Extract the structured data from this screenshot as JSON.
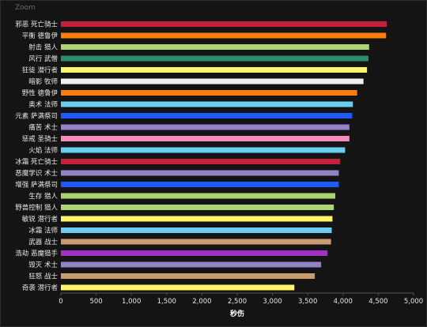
{
  "toolbar": {
    "zoom_label": "Zoom"
  },
  "chart_data": {
    "type": "bar",
    "orientation": "horizontal",
    "xlabel": "秒伤",
    "xlim": [
      0,
      5000
    ],
    "xticks": [
      "0",
      "500",
      "1,000",
      "1,500",
      "2,000",
      "2,500",
      "3,000",
      "3,500",
      "4,000",
      "4,500",
      "5,000"
    ],
    "grid": false,
    "categories": [
      "邪恶 死亡骑士",
      "平衡 德鲁伊",
      "射击 猎人",
      "风行 武僧",
      "狂徒 潜行者",
      "暗影 牧师",
      "野性 德鲁伊",
      "奥术 法师",
      "元素 萨满祭司",
      "痛苦 术士",
      "惩戒 圣骑士",
      "火焰 法师",
      "冰霜 死亡骑士",
      "恶魔学识 术士",
      "增强 萨满祭司",
      "生存 猎人",
      "野兽控制 猎人",
      "敏锐 潜行者",
      "冰霜 法师",
      "武器 战士",
      "浩劫 恶魔猎手",
      "毁灭 术士",
      "狂怒 战士",
      "奇袭 潜行者"
    ],
    "values": [
      4620,
      4610,
      4370,
      4360,
      4340,
      4290,
      4200,
      4140,
      4130,
      4090,
      4090,
      4030,
      3960,
      3940,
      3940,
      3890,
      3870,
      3850,
      3840,
      3830,
      3780,
      3690,
      3600,
      3310
    ],
    "colors": [
      "#C41F3B",
      "#FF7D0A",
      "#ABD473",
      "#2E8B6B",
      "#FFF569",
      "#F0F0F0",
      "#FF7D0A",
      "#69CCF0",
      "#1E5BFF",
      "#9482C9",
      "#F58CBA",
      "#69CCF0",
      "#C41F3B",
      "#9482C9",
      "#1E5BFF",
      "#ABD473",
      "#ABD473",
      "#FFF569",
      "#69CCF0",
      "#C79C6E",
      "#A330C9",
      "#9482C9",
      "#C79C6E",
      "#FFF569"
    ]
  }
}
